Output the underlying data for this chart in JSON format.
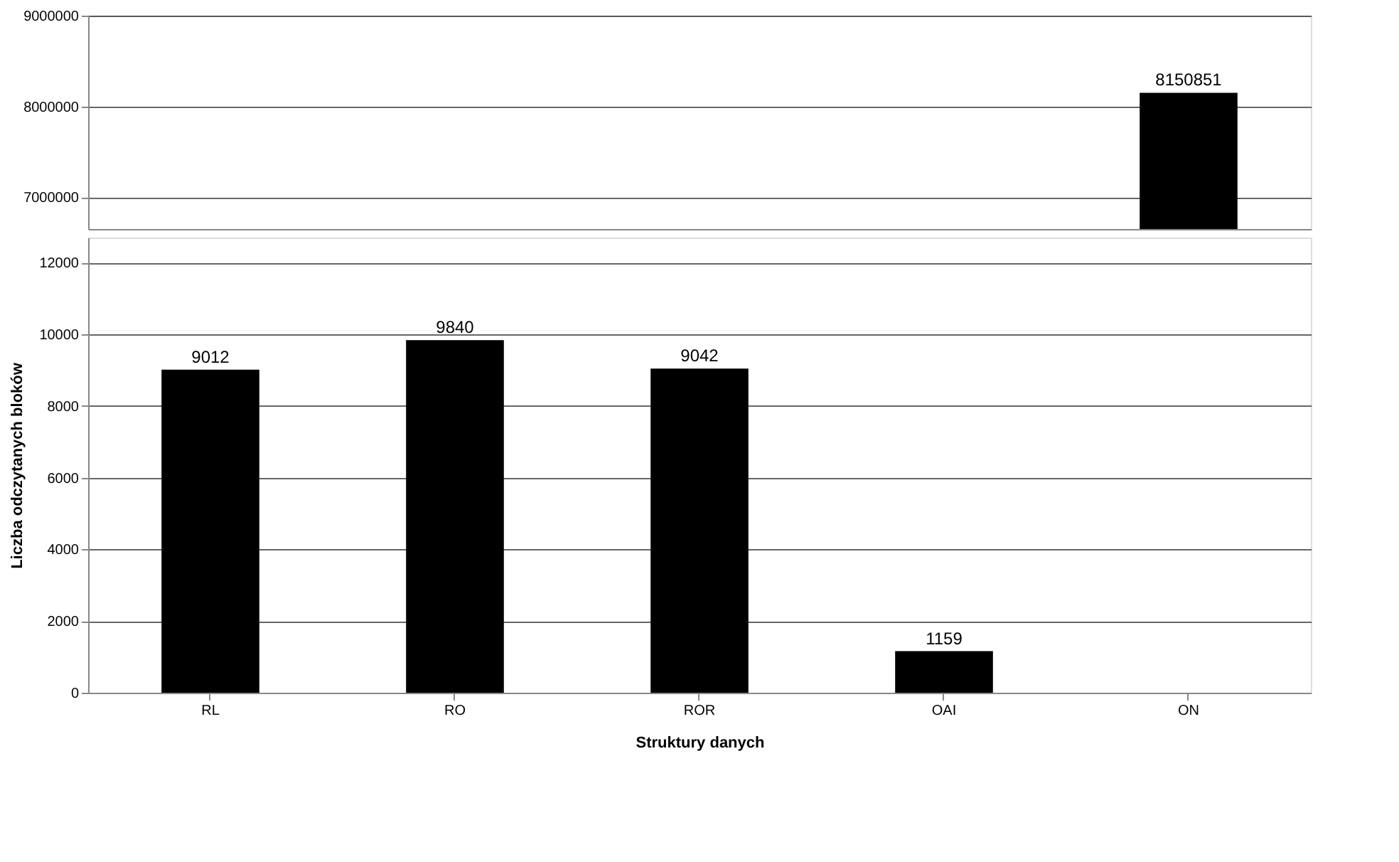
{
  "chart_data": [
    {
      "type": "bar",
      "categories": [
        null,
        null,
        null,
        null,
        null
      ],
      "values": [
        null,
        null,
        null,
        null,
        8150851
      ],
      "color": "#000000",
      "ylim": [
        6650000,
        9000000
      ],
      "yticks": [
        7000000,
        8000000,
        9000000
      ],
      "grid": "y",
      "data_labels": true,
      "tick_labels": "y"
    },
    {
      "type": "bar",
      "xlabel": "Struktury danych",
      "ylabel": "Liczba odczytanych bloków",
      "categories": [
        "RL",
        "RO",
        "ROR",
        "OAI",
        "ON"
      ],
      "values": [
        9012,
        9840,
        9042,
        1159,
        null
      ],
      "color": "#000000",
      "ylim": [
        0,
        12700
      ],
      "yticks": [
        0,
        2000,
        4000,
        6000,
        8000,
        10000,
        12000
      ],
      "grid": "y",
      "data_labels": true
    }
  ]
}
